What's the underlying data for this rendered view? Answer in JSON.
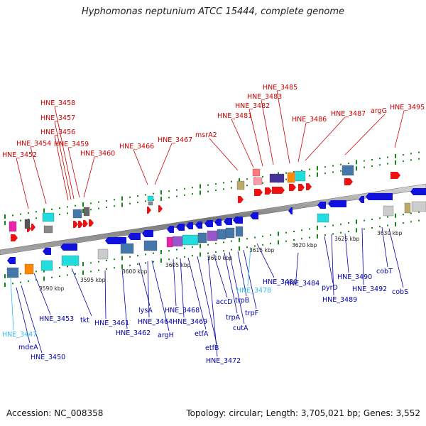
{
  "title": "Hyphomonas neptunium ATCC 15444, complete genome",
  "footer": {
    "accession": "Accession: NC_008358",
    "stats": "Topology: circular; Length: 3,705,021 bp; Genes: 3,552"
  },
  "colors": {
    "top_label": "#cc0000",
    "bottom_label": "#0000aa",
    "highlight_label": "#33bbee",
    "forward_gene": "#ee1111",
    "reverse_gene": "#1111dd",
    "backbone": "#888888",
    "tick_dot": "#118811"
  },
  "scale_ticks": [
    "3590 kbp",
    "3595 kbp",
    "3600 kbp",
    "3605 kbp",
    "3610 kbp",
    "3615 kbp",
    "3620 kbp",
    "3625 kbp",
    "3630 kbp"
  ],
  "top_labels": [
    {
      "text": "HNE_3452",
      "color": "red"
    },
    {
      "text": "HNE_3454",
      "color": "red"
    },
    {
      "text": "HNE_3456",
      "color": "red"
    },
    {
      "text": "HNE_3457",
      "color": "red"
    },
    {
      "text": "HNE_3458",
      "color": "red"
    },
    {
      "text": "HNE_3459",
      "color": "red"
    },
    {
      "text": "HNE_3460",
      "color": "red"
    },
    {
      "text": "HNE_3466",
      "color": "red"
    },
    {
      "text": "HNE_3467",
      "color": "red"
    },
    {
      "text": "msrA2",
      "color": "red"
    },
    {
      "text": "HNE_3481",
      "color": "red"
    },
    {
      "text": "HNE_3482",
      "color": "red"
    },
    {
      "text": "HNE_3483",
      "color": "red"
    },
    {
      "text": "HNE_3485",
      "color": "red"
    },
    {
      "text": "HNE_3486",
      "color": "red"
    },
    {
      "text": "HNE_3487",
      "color": "red"
    },
    {
      "text": "argG",
      "color": "red"
    },
    {
      "text": "HNE_3495",
      "color": "red"
    }
  ],
  "bottom_labels": [
    {
      "text": "HNE_3447",
      "color": "cyan"
    },
    {
      "text": "mdeA",
      "color": "blue"
    },
    {
      "text": "HNE_3450",
      "color": "blue"
    },
    {
      "text": "HNE_3453",
      "color": "blue"
    },
    {
      "text": "tkt",
      "color": "blue"
    },
    {
      "text": "HNE_3461",
      "color": "blue"
    },
    {
      "text": "HNE_3462",
      "color": "blue"
    },
    {
      "text": "lysA",
      "color": "blue"
    },
    {
      "text": "HNE_3464",
      "color": "blue"
    },
    {
      "text": "argH",
      "color": "blue"
    },
    {
      "text": "HNE_3468",
      "color": "blue"
    },
    {
      "text": "HNE_3469",
      "color": "blue"
    },
    {
      "text": "etfA",
      "color": "blue"
    },
    {
      "text": "etfB",
      "color": "blue"
    },
    {
      "text": "HNE_3472",
      "color": "blue"
    },
    {
      "text": "accD",
      "color": "blue"
    },
    {
      "text": "trpA",
      "color": "blue"
    },
    {
      "text": "cutA",
      "color": "blue"
    },
    {
      "text": "trpB",
      "color": "blue"
    },
    {
      "text": "trpF",
      "color": "blue"
    },
    {
      "text": "HNE_3478",
      "color": "cyan"
    },
    {
      "text": "HNE_3480",
      "color": "blue"
    },
    {
      "text": "HNE_3484",
      "color": "blue"
    },
    {
      "text": "pyrD",
      "color": "blue"
    },
    {
      "text": "HNE_3489",
      "color": "blue"
    },
    {
      "text": "HNE_3490",
      "color": "blue"
    },
    {
      "text": "HNE_3492",
      "color": "blue"
    },
    {
      "text": "cobT",
      "color": "blue"
    },
    {
      "text": "cobS",
      "color": "blue"
    }
  ]
}
